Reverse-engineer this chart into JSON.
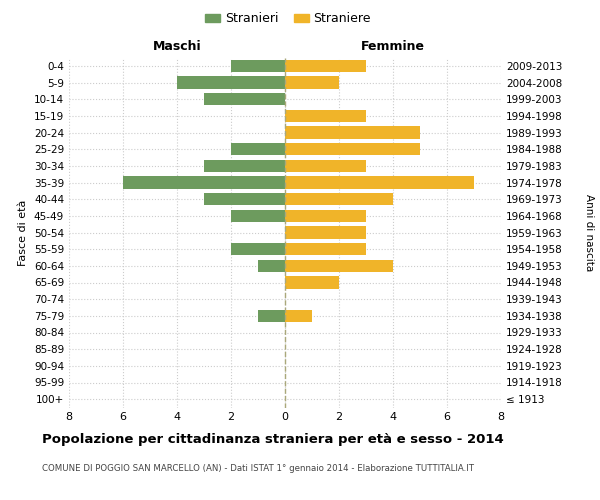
{
  "age_groups": [
    "100+",
    "95-99",
    "90-94",
    "85-89",
    "80-84",
    "75-79",
    "70-74",
    "65-69",
    "60-64",
    "55-59",
    "50-54",
    "45-49",
    "40-44",
    "35-39",
    "30-34",
    "25-29",
    "20-24",
    "15-19",
    "10-14",
    "5-9",
    "0-4"
  ],
  "birth_years": [
    "≤ 1913",
    "1914-1918",
    "1919-1923",
    "1924-1928",
    "1929-1933",
    "1934-1938",
    "1939-1943",
    "1944-1948",
    "1949-1953",
    "1954-1958",
    "1959-1963",
    "1964-1968",
    "1969-1973",
    "1974-1978",
    "1979-1983",
    "1984-1988",
    "1989-1993",
    "1994-1998",
    "1999-2003",
    "2004-2008",
    "2009-2013"
  ],
  "males": [
    0,
    0,
    0,
    0,
    0,
    1,
    0,
    0,
    1,
    2,
    0,
    2,
    3,
    6,
    3,
    2,
    0,
    0,
    3,
    4,
    2
  ],
  "females": [
    0,
    0,
    0,
    0,
    0,
    1,
    0,
    2,
    4,
    3,
    3,
    3,
    4,
    7,
    3,
    5,
    5,
    3,
    0,
    2,
    3
  ],
  "male_color": "#6d9b5e",
  "female_color": "#f0b429",
  "title": "Popolazione per cittadinanza straniera per età e sesso - 2014",
  "subtitle": "COMUNE DI POGGIO SAN MARCELLO (AN) - Dati ISTAT 1° gennaio 2014 - Elaborazione TUTTITALIA.IT",
  "xlabel_left": "Maschi",
  "xlabel_right": "Femmine",
  "ylabel_left": "Fasce di età",
  "ylabel_right": "Anni di nascita",
  "legend_male": "Stranieri",
  "legend_female": "Straniere",
  "xlim": 8,
  "background_color": "#ffffff",
  "grid_color": "#cccccc"
}
